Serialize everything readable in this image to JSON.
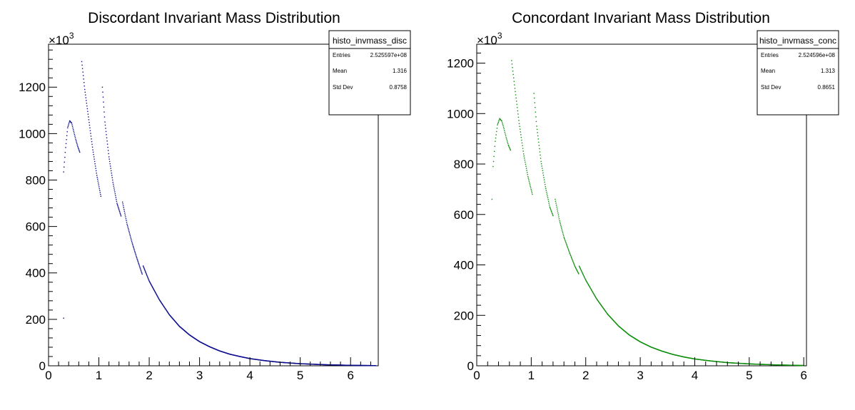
{
  "chart_data": [
    {
      "type": "scatter",
      "title": "Discordant Invariant Mass Distribution",
      "xlabel": "",
      "ylabel": "",
      "xlim": [
        0,
        6.55
      ],
      "ylim": [
        0,
        1385000
      ],
      "y_multiplier_label": "×10",
      "y_multiplier_exp": "3",
      "x_ticks": [
        "0",
        "1",
        "2",
        "3",
        "4",
        "5",
        "6"
      ],
      "y_ticks": [
        "0",
        "200",
        "400",
        "600",
        "800",
        "1000",
        "1200"
      ],
      "grid": false,
      "marker_color": "#0a0a8c",
      "stats_box": {
        "name": "histo_invmass_disc",
        "entries_label": "Entries",
        "entries": "2.525597e+08",
        "mean_label": "Mean",
        "mean": "1.316",
        "stddev_label": "Std Dev",
        "stddev": "0.8758"
      },
      "series": [
        {
          "segments": [
            {
              "x": [
                0.3
              ],
              "y": [
                205000
              ]
            },
            {
              "x": [
                0.3,
                0.34,
                0.38,
                0.42,
                0.46,
                0.5,
                0.54,
                0.58,
                0.62
              ],
              "y": [
                835000,
                940000,
                1025000,
                1055000,
                1045000,
                1010000,
                975000,
                945000,
                920000
              ]
            },
            {
              "x": [
                0.66,
                0.72,
                0.8,
                0.88,
                0.96,
                1.04
              ],
              "y": [
                1310000,
                1190000,
                1060000,
                930000,
                820000,
                730000
              ]
            },
            {
              "x": [
                1.07,
                1.12,
                1.2,
                1.28,
                1.36,
                1.44
              ],
              "y": [
                1200000,
                1050000,
                900000,
                790000,
                700000,
                645000
              ]
            },
            {
              "x": [
                1.47,
                1.56,
                1.66,
                1.76,
                1.86
              ],
              "y": [
                705000,
                610000,
                530000,
                460000,
                395000
              ]
            },
            {
              "x": [
                1.88,
                2.0,
                2.2,
                2.4,
                2.6,
                2.8,
                3.0,
                3.2,
                3.4,
                3.6,
                3.8,
                4.0,
                4.3,
                4.6,
                5.0,
                5.5,
                6.0,
                6.5
              ],
              "y": [
                430000,
                365000,
                285000,
                220000,
                170000,
                133000,
                104000,
                82000,
                64000,
                50000,
                40000,
                31000,
                22000,
                15000,
                9000,
                4500,
                2000,
                800
              ]
            }
          ]
        }
      ]
    },
    {
      "type": "scatter",
      "title": "Concordant Invariant Mass Distribution",
      "xlabel": "",
      "ylabel": "",
      "xlim": [
        0,
        6.05
      ],
      "ylim": [
        0,
        1275000
      ],
      "y_multiplier_label": "×10",
      "y_multiplier_exp": "3",
      "x_ticks": [
        "0",
        "1",
        "2",
        "3",
        "4",
        "5",
        "6"
      ],
      "y_ticks": [
        "0",
        "200",
        "400",
        "600",
        "800",
        "1000",
        "1200"
      ],
      "grid": false,
      "marker_color": "#0a8c0a",
      "stats_box": {
        "name": "histo_invmass_conc",
        "entries_label": "Entries",
        "entries": "2.524596e+08",
        "mean_label": "Mean",
        "mean": "1.313",
        "stddev_label": "Std Dev",
        "stddev": "0.8651"
      },
      "series": [
        {
          "segments": [
            {
              "x": [
                0.28
              ],
              "y": [
                660000
              ]
            },
            {
              "x": [
                0.3,
                0.34,
                0.38,
                0.42,
                0.46,
                0.5,
                0.54,
                0.58,
                0.62
              ],
              "y": [
                790000,
                890000,
                955000,
                980000,
                970000,
                940000,
                905000,
                875000,
                855000
              ]
            },
            {
              "x": [
                0.64,
                0.7,
                0.78,
                0.86,
                0.94,
                1.02
              ],
              "y": [
                1210000,
                1100000,
                960000,
                840000,
                750000,
                680000
              ]
            },
            {
              "x": [
                1.05,
                1.1,
                1.18,
                1.26,
                1.34,
                1.4
              ],
              "y": [
                1080000,
                950000,
                810000,
                710000,
                630000,
                595000
              ]
            },
            {
              "x": [
                1.44,
                1.52,
                1.6,
                1.7,
                1.8,
                1.87
              ],
              "y": [
                660000,
                575000,
                510000,
                450000,
                395000,
                365000
              ]
            },
            {
              "x": [
                1.88,
                2.0,
                2.2,
                2.4,
                2.6,
                2.8,
                3.0,
                3.2,
                3.4,
                3.6,
                3.8,
                4.0,
                4.3,
                4.6,
                5.0,
                5.5,
                6.0
              ],
              "y": [
                395000,
                340000,
                265000,
                205000,
                158000,
                122000,
                95000,
                74000,
                58000,
                45000,
                35000,
                27000,
                19000,
                12500,
                7500,
                3500,
                1200
              ]
            }
          ]
        }
      ]
    }
  ]
}
